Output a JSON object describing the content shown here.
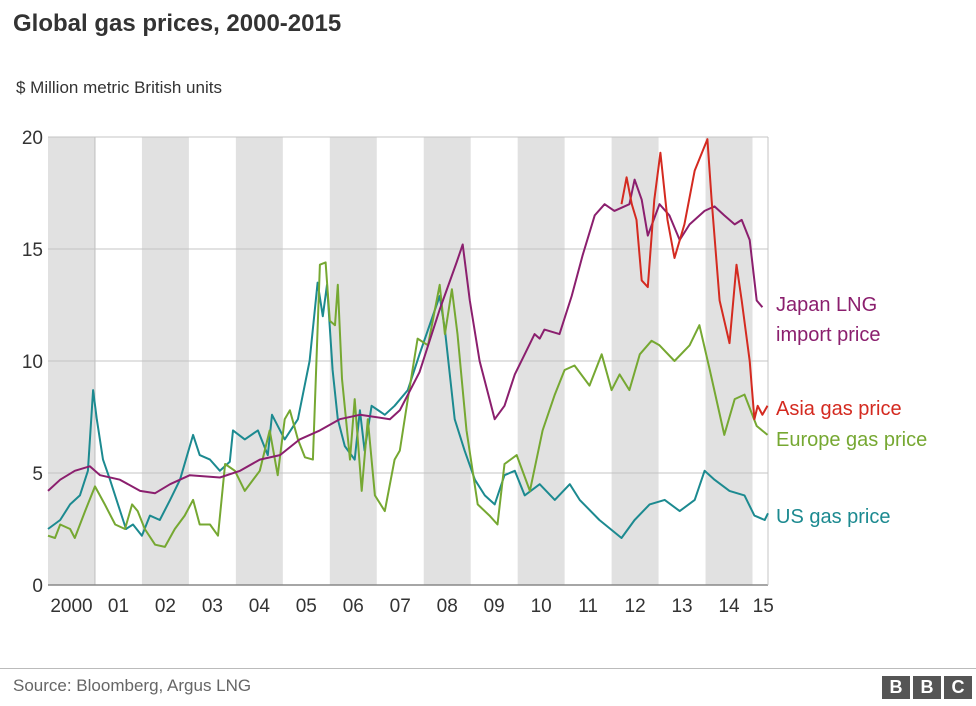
{
  "title": "Global gas prices, 2000-2015",
  "subtitle": "$ Million metric British units",
  "source": "Source: Bloomberg, Argus LNG",
  "logo": [
    "B",
    "B",
    "C"
  ],
  "chart_data": {
    "type": "line",
    "title": "Global gas prices, 2000-2015",
    "ylabel": "$ Million metric British units",
    "xlabel": "",
    "xlim": [
      2000,
      2015.33
    ],
    "ylim": [
      0,
      20
    ],
    "yticks": [
      0,
      5,
      10,
      15,
      20
    ],
    "xtick_labels": [
      "2000",
      "01",
      "02",
      "03",
      "04",
      "05",
      "06",
      "07",
      "08",
      "09",
      "10",
      "11",
      "12",
      "13",
      "14",
      "15"
    ],
    "grid": "horizontal lines at 5, 10, 15; alternating grey year bands",
    "legend": "direct labels at right",
    "series": [
      {
        "name": "Japan LNG import price",
        "label_lines": [
          "Japan LNG",
          "import price"
        ],
        "color": "#8b1f6e",
        "x": [
          2000,
          2000.26,
          2000.57,
          2000.89,
          2001.11,
          2001.53,
          2001.96,
          2002.28,
          2002.6,
          2003.02,
          2003.66,
          2004.09,
          2004.51,
          2004.94,
          2005.36,
          2005.79,
          2006.21,
          2006.64,
          2007.28,
          2007.49,
          2007.91,
          2008.34,
          2008.7,
          2008.83,
          2008.98,
          2009.19,
          2009.4,
          2009.51,
          2009.72,
          2009.94,
          2010.15,
          2010.36,
          2010.47,
          2010.57,
          2010.89,
          2011.15,
          2011.38,
          2011.64,
          2011.85,
          2012.06,
          2012.38,
          2012.49,
          2012.64,
          2012.77,
          2013.02,
          2013.23,
          2013.45,
          2013.66,
          2013.98,
          2014.19,
          2014.4,
          2014.62,
          2014.77,
          2014.94,
          2015.09,
          2015.21
        ],
        "y": [
          4.2,
          4.7,
          5.1,
          5.3,
          4.9,
          4.7,
          4.2,
          4.1,
          4.5,
          4.9,
          4.8,
          5.1,
          5.6,
          5.8,
          6.5,
          6.9,
          7.4,
          7.6,
          7.4,
          7.8,
          9.5,
          12.3,
          14.4,
          15.2,
          12.7,
          10.0,
          8.3,
          7.4,
          8.0,
          9.4,
          10.3,
          11.2,
          11.0,
          11.4,
          11.2,
          12.9,
          14.7,
          16.5,
          17.0,
          16.7,
          17.0,
          18.1,
          17.2,
          15.6,
          17.0,
          16.5,
          15.4,
          16.1,
          16.7,
          16.9,
          16.5,
          16.1,
          16.3,
          15.4,
          12.7,
          12.4
        ]
      },
      {
        "name": "Asia gas price",
        "label_lines": [
          "Asia gas price"
        ],
        "color": "#d42a20",
        "x": [
          2012.21,
          2012.32,
          2012.43,
          2012.53,
          2012.64,
          2012.77,
          2012.91,
          2013.04,
          2013.19,
          2013.34,
          2013.55,
          2013.77,
          2014.04,
          2014.13,
          2014.3,
          2014.51,
          2014.66,
          2014.77,
          2014.94,
          2015.04,
          2015.11,
          2015.21,
          2015.32
        ],
        "y": [
          17.0,
          18.2,
          17.0,
          16.3,
          13.6,
          13.3,
          17.2,
          19.3,
          16.3,
          14.6,
          16.1,
          18.5,
          19.9,
          17.2,
          12.7,
          10.8,
          14.3,
          12.7,
          10.0,
          7.4,
          8.0,
          7.6,
          8.0
        ]
      },
      {
        "name": "Europe gas price",
        "label_lines": [
          "Europe gas price"
        ],
        "color": "#76a832",
        "x": [
          2000,
          2000.15,
          2000.26,
          2000.47,
          2000.57,
          2000.79,
          2001,
          2001.21,
          2001.43,
          2001.64,
          2001.79,
          2001.91,
          2002.06,
          2002.28,
          2002.49,
          2002.7,
          2002.91,
          2003.09,
          2003.23,
          2003.45,
          2003.62,
          2003.77,
          2003.98,
          2004.19,
          2004.51,
          2004.72,
          2004.89,
          2005.04,
          2005.15,
          2005.32,
          2005.47,
          2005.64,
          2005.79,
          2005.91,
          2006,
          2006.11,
          2006.17,
          2006.26,
          2006.43,
          2006.53,
          2006.68,
          2006.81,
          2006.96,
          2007.17,
          2007.38,
          2007.49,
          2007.66,
          2007.87,
          2008.09,
          2008.34,
          2008.45,
          2008.6,
          2008.72,
          2008.91,
          2009.15,
          2009.4,
          2009.57,
          2009.72,
          2009.98,
          2010.26,
          2010.53,
          2010.79,
          2011,
          2011.21,
          2011.53,
          2011.79,
          2012,
          2012.17,
          2012.38,
          2012.6,
          2012.85,
          2013.02,
          2013.34,
          2013.66,
          2013.87,
          2014.09,
          2014.4,
          2014.62,
          2014.83,
          2015.09,
          2015.32
        ],
        "y": [
          2.2,
          2.1,
          2.7,
          2.5,
          2.1,
          3.3,
          4.4,
          3.6,
          2.7,
          2.5,
          3.6,
          3.3,
          2.5,
          1.8,
          1.7,
          2.5,
          3.1,
          3.8,
          2.7,
          2.7,
          2.2,
          5.4,
          5.1,
          4.2,
          5.1,
          6.9,
          4.9,
          7.4,
          7.8,
          6.5,
          5.7,
          5.6,
          14.3,
          14.4,
          11.8,
          11.6,
          13.4,
          9.2,
          5.6,
          8.3,
          4.2,
          7.4,
          4.0,
          3.3,
          5.6,
          6.0,
          8.3,
          11.0,
          10.7,
          13.4,
          11.2,
          13.2,
          11.2,
          6.9,
          3.6,
          3.1,
          2.7,
          5.4,
          5.8,
          4.2,
          6.9,
          8.5,
          9.6,
          9.8,
          8.9,
          10.3,
          8.7,
          9.4,
          8.7,
          10.3,
          10.9,
          10.7,
          10.0,
          10.7,
          11.6,
          9.6,
          6.7,
          8.3,
          8.5,
          7.1,
          6.7
        ]
      },
      {
        "name": "US gas price",
        "label_lines": [
          "US gas price"
        ],
        "color": "#1c8a90",
        "x": [
          2000,
          2000.26,
          2000.47,
          2000.68,
          2000.85,
          2000.96,
          2001.04,
          2001.17,
          2001.32,
          2001.49,
          2001.66,
          2001.81,
          2002,
          2002.17,
          2002.38,
          2002.6,
          2002.81,
          2003.09,
          2003.23,
          2003.45,
          2003.66,
          2003.87,
          2003.94,
          2004.19,
          2004.47,
          2004.68,
          2004.77,
          2005.04,
          2005.32,
          2005.57,
          2005.74,
          2005.85,
          2005.94,
          2006.06,
          2006.17,
          2006.32,
          2006.53,
          2006.64,
          2006.74,
          2006.89,
          2007.17,
          2007.38,
          2007.66,
          2007.91,
          2008.34,
          2008.45,
          2008.66,
          2008.87,
          2009.09,
          2009.3,
          2009.51,
          2009.72,
          2009.94,
          2010.15,
          2010.47,
          2010.79,
          2011.11,
          2011.32,
          2011.74,
          2012.21,
          2012.49,
          2012.81,
          2013.13,
          2013.45,
          2013.77,
          2013.98,
          2014.19,
          2014.51,
          2014.83,
          2015.04,
          2015.26,
          2015.33
        ],
        "y": [
          2.5,
          2.9,
          3.6,
          4.0,
          5.1,
          8.7,
          7.4,
          5.6,
          4.7,
          3.6,
          2.5,
          2.7,
          2.2,
          3.1,
          2.9,
          3.8,
          4.7,
          6.7,
          5.8,
          5.6,
          5.1,
          5.5,
          6.9,
          6.5,
          6.9,
          5.8,
          7.6,
          6.5,
          7.4,
          10.0,
          13.5,
          12.0,
          13.4,
          9.6,
          7.4,
          6.2,
          5.6,
          7.8,
          6.0,
          8.0,
          7.6,
          8.0,
          8.7,
          10.3,
          12.9,
          11.4,
          7.4,
          6.0,
          4.7,
          4.0,
          3.6,
          4.9,
          5.1,
          4.0,
          4.5,
          3.8,
          4.5,
          3.8,
          2.9,
          2.1,
          2.9,
          3.6,
          3.8,
          3.3,
          3.8,
          5.1,
          4.7,
          4.2,
          4.0,
          3.1,
          2.9,
          3.2
        ]
      }
    ]
  }
}
